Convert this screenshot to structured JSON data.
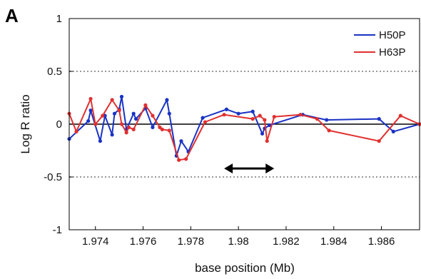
{
  "panel_label": "A",
  "chart_data": {
    "type": "line",
    "xlabel": "base position (Mb)",
    "ylabel": "Log R ratio",
    "xlim": [
      1.9729,
      1.9876
    ],
    "ylim": [
      -1,
      1
    ],
    "x_ticks": [
      1.974,
      1.976,
      1.978,
      1.98,
      1.982,
      1.984,
      1.986
    ],
    "x_tick_labels": [
      "1.974",
      "1.976",
      "1.978",
      "1.98",
      "1.982",
      "1.984",
      "1.986"
    ],
    "y_ticks": [
      1,
      0.5,
      0,
      -0.5,
      -1
    ],
    "y_tick_labels": [
      "1",
      "0.5",
      "0",
      "-0.5",
      "-1"
    ],
    "reference_lines": {
      "solid": [
        0
      ],
      "dotted": [
        0.5,
        -0.5
      ]
    },
    "grid": false,
    "legend_position": "top-right",
    "annotation": "double-headed arrow spanning about 1.9794 to 1.9815 Mb at about -0.42",
    "arrow": {
      "x_start": 1.9794,
      "x_end": 1.9815,
      "y": -0.42
    },
    "series": [
      {
        "name": "H50P",
        "color": "#1a33c4",
        "x": [
          1.9729,
          1.9737,
          1.9738,
          1.9742,
          1.9744,
          1.9747,
          1.9748,
          1.975,
          1.9751,
          1.9753,
          1.9756,
          1.9757,
          1.9761,
          1.9764,
          1.977,
          1.9771,
          1.9774,
          1.9776,
          1.9779,
          1.9785,
          1.9795,
          1.98,
          1.9806,
          1.981,
          1.9811,
          1.9813,
          1.9827,
          1.9837,
          1.9859,
          1.9865,
          1.9876
        ],
        "y": [
          -0.14,
          0.03,
          0.13,
          -0.16,
          0.08,
          -0.1,
          0.1,
          0.14,
          0.26,
          -0.05,
          0.1,
          0.05,
          0.15,
          -0.03,
          0.23,
          0.1,
          -0.3,
          -0.16,
          -0.26,
          0.06,
          0.14,
          0.1,
          0.12,
          -0.09,
          -0.04,
          -0.01,
          0.09,
          0.04,
          0.05,
          -0.07,
          0.0
        ]
      },
      {
        "name": "H63P",
        "color": "#e03030",
        "x": [
          1.9729,
          1.9732,
          1.9738,
          1.974,
          1.9743,
          1.9747,
          1.975,
          1.9751,
          1.9753,
          1.9754,
          1.9756,
          1.9761,
          1.9764,
          1.9767,
          1.9768,
          1.9771,
          1.9775,
          1.9778,
          1.9786,
          1.9794,
          1.9806,
          1.9809,
          1.9811,
          1.9812,
          1.9815,
          1.9826,
          1.9833,
          1.9838,
          1.9859,
          1.9868,
          1.9876
        ],
        "y": [
          0.1,
          -0.07,
          0.24,
          0.0,
          0.08,
          0.23,
          0.13,
          0.0,
          -0.08,
          -0.03,
          -0.05,
          0.18,
          0.08,
          -0.03,
          -0.05,
          -0.06,
          -0.34,
          -0.33,
          0.02,
          0.09,
          0.05,
          0.08,
          0.04,
          -0.16,
          0.07,
          0.09,
          0.05,
          -0.06,
          -0.16,
          0.08,
          0.0
        ]
      }
    ]
  }
}
